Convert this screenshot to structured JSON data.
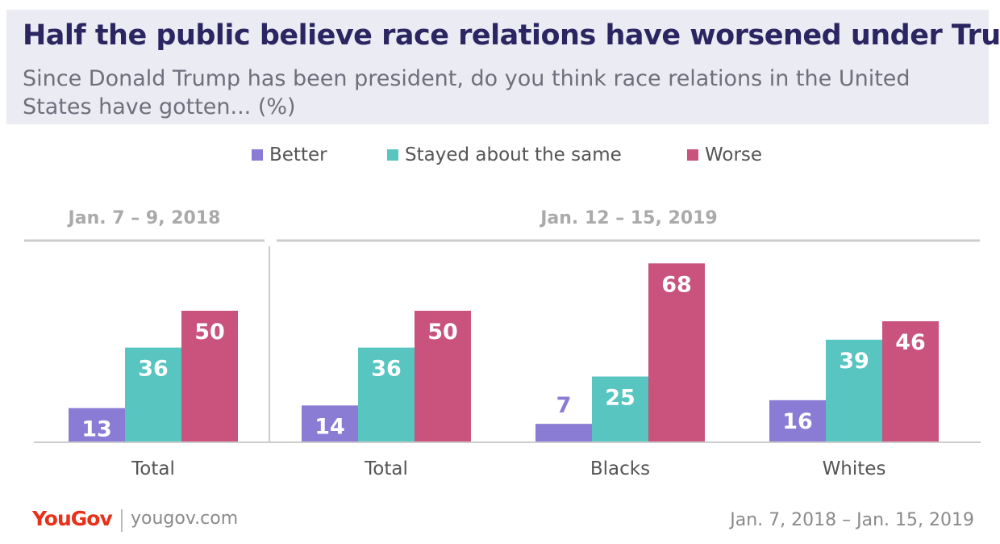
{
  "header": {
    "title": "Half the public believe race relations have worsened under Trump",
    "subtitle": "Since Donald Trump has been president, do you think race relations in the United States have gotten... (%)"
  },
  "legend": [
    {
      "label": "Better",
      "color": "#8a7bd4"
    },
    {
      "label": "Stayed about the same",
      "color": "#58c5c0"
    },
    {
      "label": "Worse",
      "color": "#c9537c"
    }
  ],
  "chart_data": {
    "type": "bar",
    "series": [
      {
        "name": "Better",
        "color": "#8a7bd4",
        "values": [
          13,
          14,
          7,
          16
        ]
      },
      {
        "name": "Stayed about the same",
        "color": "#58c5c0",
        "values": [
          36,
          36,
          25,
          39
        ]
      },
      {
        "name": "Worse",
        "color": "#c9537c",
        "values": [
          50,
          50,
          68,
          46
        ]
      }
    ],
    "categories": [
      "Total",
      "Total",
      "Blacks",
      "Whites"
    ],
    "panels": [
      {
        "label": "Jan. 7 – 9, 2018",
        "categories": [
          0
        ]
      },
      {
        "label": "Jan. 12 – 15, 2019",
        "categories": [
          1,
          2,
          3
        ]
      }
    ],
    "ylim": [
      0,
      70
    ],
    "grid": false,
    "legend_position": "top"
  },
  "footer": {
    "brand": "YouGov",
    "site": "yougov.com",
    "date_range": "Jan. 7, 2018 – Jan. 15, 2019"
  }
}
